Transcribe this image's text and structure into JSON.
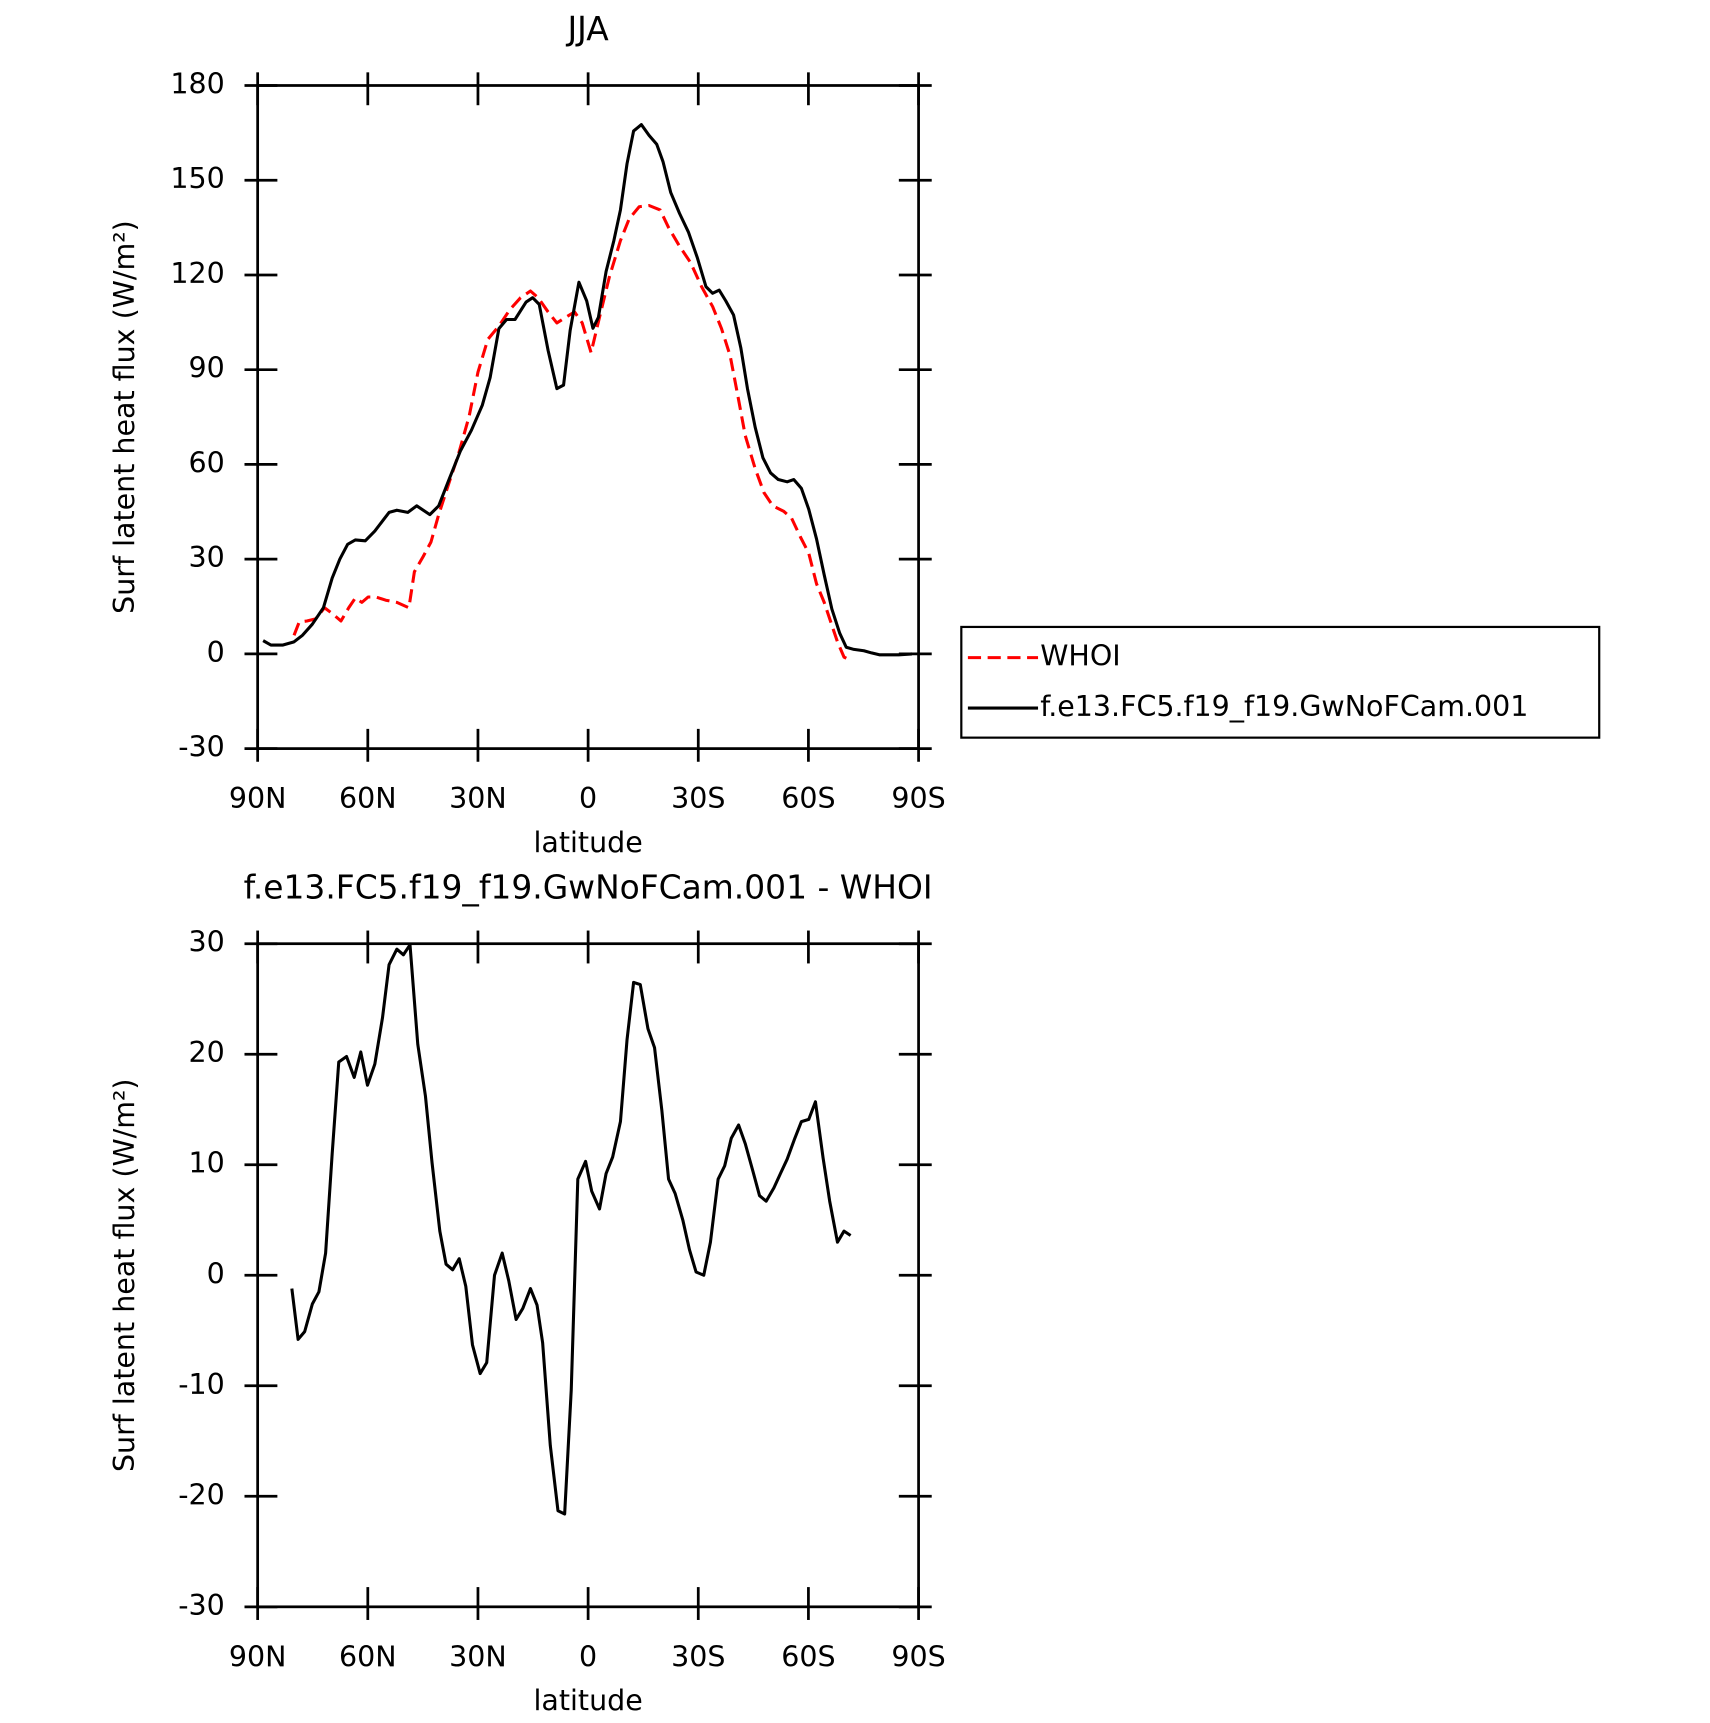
{
  "chart_data": [
    {
      "type": "line",
      "title": "JJA",
      "xlabel": "latitude",
      "ylabel": "Surf latent heat flux (W/m²)",
      "xlim": [
        90,
        -90
      ],
      "xticks": [
        {
          "value": 90,
          "label": "90N"
        },
        {
          "value": 60,
          "label": "60N"
        },
        {
          "value": 30,
          "label": "30N"
        },
        0,
        {
          "value": -30,
          "label": "30S"
        },
        {
          "value": -60,
          "label": "60S"
        },
        {
          "value": -90,
          "label": "90S"
        }
      ],
      "ylim": [
        -30,
        180
      ],
      "yticks": [
        -30,
        0,
        30,
        60,
        90,
        120,
        150,
        180
      ],
      "legend": "right",
      "series": [
        {
          "name": "WHOI",
          "color": "#ff0000",
          "dashed": true,
          "x": [
            80.1,
            78.7,
            76.6,
            74.2,
            71.8,
            69.7,
            67.3,
            65.2,
            63.4,
            61.6,
            59.9,
            57.8,
            55.1,
            52.1,
            48.8,
            47.3,
            44.9,
            42.8,
            40.7,
            37.8,
            35.4,
            32.4,
            30.0,
            27.3,
            24.3,
            21.3,
            18.4,
            15.7,
            13.6,
            10.9,
            8.5,
            6.1,
            3.7,
            1.6,
            -0.8,
            -3.1,
            -5.8,
            -8.8,
            -11.2,
            -13.9,
            -16.6,
            -19.6,
            -21.9,
            -24.9,
            -27.9,
            -30.9,
            -33.9,
            -36.3,
            -38.7,
            -40.7,
            -42.8,
            -45.5,
            -47.9,
            -50.3,
            -53.3,
            -55.4,
            -57.8,
            -60.1,
            -62.2,
            -64.3,
            -66.1,
            -67.9,
            -69.7,
            -71.5
          ],
          "values": [
            5.9,
            10.1,
            10.4,
            11.1,
            14.6,
            12.8,
            10.4,
            14.6,
            17.7,
            16.3,
            18.0,
            18.0,
            17.0,
            16.3,
            14.6,
            26,
            30.9,
            35.4,
            44.1,
            54.5,
            62.8,
            75.3,
            89.2,
            99.6,
            103.8,
            109,
            112.8,
            114.9,
            112.8,
            108.3,
            104.8,
            106.6,
            108.3,
            104.8,
            95.4,
            106.6,
            119.4,
            130.9,
            137.8,
            141.6,
            142,
            140.6,
            135,
            129.1,
            123.9,
            116.3,
            110,
            103.1,
            94.4,
            82.3,
            69.1,
            58.7,
            51,
            46.9,
            45.1,
            43,
            37.1,
            31.9,
            22.2,
            16.3,
            10.1,
            3.8,
            -1.0,
            -2.1
          ]
        },
        {
          "name": "f.e13.FC5.f19_f19.GwNoFCam.001",
          "color": "#000000",
          "dashed": false,
          "x": [
            88.5,
            86.4,
            83.1,
            80.1,
            77.8,
            75.1,
            72.1,
            69.7,
            67.6,
            65.5,
            63.4,
            60.7,
            58.1,
            54.2,
            52.1,
            49.1,
            46.7,
            43.1,
            40.7,
            37.8,
            34.8,
            31.8,
            28.8,
            26.7,
            24.3,
            22.2,
            19.9,
            16.9,
            15.1,
            13.3,
            10.9,
            8.5,
            6.7,
            4.9,
            2.5,
            0.4,
            -1.3,
            -2.8,
            -4.9,
            -7.0,
            -8.8,
            -10.6,
            -12.4,
            -14.5,
            -16.6,
            -18.7,
            -20.4,
            -22.5,
            -24.9,
            -27.3,
            -29.7,
            -32.1,
            -33.9,
            -35.7,
            -37.5,
            -39.6,
            -41.6,
            -43.4,
            -45.5,
            -47.6,
            -49.7,
            -51.8,
            -54.2,
            -56.0,
            -58.1,
            -60.1,
            -62.2,
            -64.3,
            -66.4,
            -68.5,
            -70.3,
            -72.4,
            -75.1,
            -77.2,
            -79.3,
            -82.2,
            -84.6,
            -88.2
          ],
          "values": [
            4.2,
            2.8,
            2.8,
            3.8,
            5.9,
            9.4,
            14.6,
            24,
            30,
            34.7,
            36.1,
            35.8,
            38.9,
            44.8,
            45.5,
            44.8,
            46.9,
            44.1,
            46.9,
            55.5,
            64.2,
            70.8,
            78.8,
            87.5,
            103,
            105.9,
            105.9,
            111.4,
            112.8,
            110.7,
            96.1,
            84,
            85.1,
            102.4,
            117.7,
            111.8,
            103.1,
            106.6,
            121.1,
            130.9,
            140.6,
            155.2,
            165.6,
            167.6,
            164.2,
            161.4,
            155.9,
            146.1,
            139.5,
            133.6,
            125.6,
            116.3,
            114.2,
            115.2,
            111.8,
            107.3,
            96.8,
            84,
            71.8,
            62.1,
            57.3,
            55.2,
            54.5,
            55.2,
            52.4,
            45.8,
            36.4,
            25,
            14.2,
            6.6,
            2.1,
            1.4,
            1.0,
            0.3,
            -0.3,
            -0.3,
            -0.3,
            0
          ]
        }
      ]
    },
    {
      "type": "line",
      "title": "f.e13.FC5.f19_f19.GwNoFCam.001 - WHOI",
      "xlabel": "latitude",
      "ylabel": "Surf latent heat flux (W/m²)",
      "xlim": [
        90,
        -90
      ],
      "xticks": [
        {
          "value": 90,
          "label": "90N"
        },
        {
          "value": 60,
          "label": "60N"
        },
        {
          "value": 30,
          "label": "30N"
        },
        0,
        {
          "value": -30,
          "label": "30S"
        },
        {
          "value": -60,
          "label": "60S"
        },
        {
          "value": -90,
          "label": "90S"
        }
      ],
      "ylim": [
        -30,
        30
      ],
      "yticks": [
        -30,
        -20,
        -10,
        0,
        10,
        20,
        30
      ],
      "series": [
        {
          "color": "#000000",
          "dashed": false,
          "x": [
            80.7,
            79.0,
            77.2,
            75.1,
            73.3,
            71.5,
            69.7,
            67.9,
            65.8,
            63.7,
            61.9,
            60.1,
            58.1,
            56.0,
            54.2,
            52.1,
            50.3,
            48.5,
            46.4,
            44.3,
            42.5,
            40.4,
            38.7,
            36.9,
            35.1,
            33.3,
            31.5,
            29.4,
            27.6,
            25.5,
            23.4,
            21.6,
            19.6,
            17.8,
            15.7,
            13.9,
            12.4,
            10.3,
            8.2,
            6.4,
            4.6,
            2.8,
            0.7,
            -1.0,
            -3.1,
            -4.9,
            -6.7,
            -8.8,
            -10.6,
            -12.4,
            -14.2,
            -16.3,
            -18.1,
            -20.1,
            -21.9,
            -23.7,
            -25.8,
            -27.6,
            -29.4,
            -31.5,
            -33.3,
            -35.4,
            -37.2,
            -39.0,
            -41.0,
            -42.8,
            -44.9,
            -46.7,
            -48.5,
            -50.6,
            -52.4,
            -54.2,
            -56.3,
            -58.1,
            -60.1,
            -61.9,
            -64.0,
            -65.8,
            -67.9,
            -69.7,
            -71.5
          ],
          "values": [
            -1.2,
            -5.8,
            -5.1,
            -2.6,
            -1.5,
            2.0,
            11.0,
            19.3,
            19.8,
            17.9,
            20.2,
            17.2,
            19.1,
            23.3,
            28.1,
            29.5,
            29.0,
            29.9,
            20.9,
            16.2,
            10.2,
            4.0,
            1.0,
            0.5,
            1.5,
            -1.0,
            -6.3,
            -8.9,
            -7.9,
            0,
            2.0,
            -0.5,
            -4.0,
            -3.0,
            -1.2,
            -2.7,
            -6.1,
            -15.4,
            -21.3,
            -21.6,
            -10.4,
            8.7,
            10.3,
            7.6,
            6.0,
            9.2,
            10.7,
            13.9,
            21.3,
            26.5,
            26.3,
            22.3,
            20.6,
            14.9,
            8.7,
            7.4,
            5.0,
            2.3,
            0.3,
            0,
            3.0,
            8.7,
            9.9,
            12.4,
            13.6,
            11.9,
            9.4,
            7.2,
            6.7,
            7.9,
            9.2,
            10.5,
            12.4,
            13.9,
            14.1,
            15.7,
            10.6,
            6.7,
            3.0,
            4.0,
            3.6
          ]
        }
      ]
    }
  ]
}
